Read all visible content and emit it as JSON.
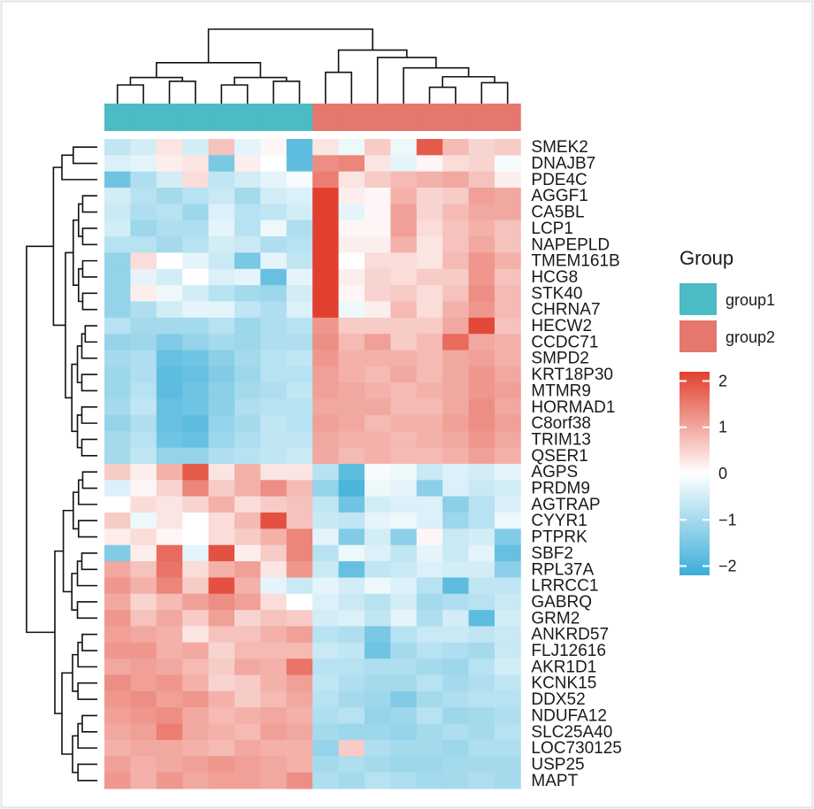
{
  "chart_data": {
    "type": "heatmap",
    "title": "",
    "rows": [
      "SMEK2",
      "DNAJB7",
      "PDE4C",
      "AGGF1",
      "CA5BL",
      "LCP1",
      "NAPEPLD",
      "TMEM161B",
      "HCG8",
      "STK40",
      "CHRNA7",
      "HECW2",
      "CCDC71",
      "SMPD2",
      "KRT18P30",
      "MTMR9",
      "HORMAD1",
      "C8orf38",
      "TRIM13",
      "QSER1",
      "AGPS",
      "PRDM9",
      "AGTRAP",
      "CYYR1",
      "PTPRK",
      "SBF2",
      "RPL37A",
      "LRRCC1",
      "GABRQ",
      "GRM2",
      "ANKRD57",
      "FLJ12616",
      "AKR1D1",
      "KCNK15",
      "DDX52",
      "NDUFA12",
      "SLC25A40",
      "LOC730125",
      "USP25",
      "MAPT"
    ],
    "column_groups": [
      "group1",
      "group1",
      "group1",
      "group1",
      "group1",
      "group1",
      "group1",
      "group1",
      "group2",
      "group2",
      "group2",
      "group2",
      "group2",
      "group2",
      "group2",
      "group2"
    ],
    "legend_group": {
      "title": "Group",
      "items": [
        {
          "label": "group1",
          "color": "#4bbbc4"
        },
        {
          "label": "group2",
          "color": "#e5776f"
        }
      ]
    },
    "color_scale": {
      "low_color": "#3aaed8",
      "mid_color": "#ffffff",
      "high_color": "#e1402e",
      "ticks": [
        2,
        1,
        0,
        -1,
        -2
      ],
      "tick_labels": [
        "2",
        "1",
        "0",
        "−1",
        "−2"
      ],
      "range": [
        -2.2,
        2.2
      ]
    },
    "values": [
      [
        -0.7,
        -0.5,
        0.3,
        -0.5,
        0.7,
        -0.3,
        0.1,
        -1.8,
        0.3,
        -0.2,
        0.6,
        -0.2,
        1.9,
        0.8,
        0.5,
        0.6
      ],
      [
        -0.4,
        -0.3,
        0.2,
        0.3,
        -1.5,
        0.2,
        0.0,
        -1.8,
        1.3,
        1.4,
        0.3,
        -0.3,
        0.1,
        0.4,
        0.5,
        -0.1
      ],
      [
        -1.6,
        -0.9,
        -0.5,
        0.4,
        -0.7,
        -0.5,
        -0.3,
        -0.1,
        1.5,
        0.3,
        0.6,
        0.8,
        0.9,
        1.0,
        0.7,
        0.2
      ],
      [
        -0.5,
        -0.8,
        -1.0,
        -0.8,
        -0.6,
        -1.0,
        -0.5,
        -0.4,
        2.2,
        0.2,
        0.1,
        0.9,
        0.5,
        0.6,
        1.1,
        1.0
      ],
      [
        -0.6,
        -0.9,
        -0.8,
        -1.1,
        -0.4,
        -0.8,
        -0.7,
        -0.5,
        2.2,
        -0.3,
        0.1,
        1.1,
        0.5,
        0.8,
        1.0,
        1.0
      ],
      [
        -0.5,
        -1.1,
        -0.9,
        -0.9,
        -0.3,
        -0.8,
        -0.2,
        -0.9,
        2.2,
        0.1,
        0.1,
        1.1,
        0.4,
        0.7,
        0.9,
        0.7
      ],
      [
        -0.8,
        -0.8,
        -1.0,
        -0.8,
        -0.5,
        -0.6,
        -0.9,
        -0.8,
        2.2,
        0.2,
        0.2,
        0.9,
        0.3,
        0.7,
        1.0,
        0.7
      ],
      [
        -1.2,
        0.4,
        0.0,
        -0.3,
        -0.6,
        -1.5,
        -0.3,
        -0.7,
        2.2,
        0.0,
        0.4,
        0.4,
        0.3,
        0.8,
        1.2,
        0.9
      ],
      [
        -1.2,
        -0.3,
        -0.5,
        0.0,
        -0.4,
        -0.3,
        -1.7,
        -0.3,
        2.2,
        0.2,
        0.5,
        0.4,
        0.6,
        0.6,
        1.2,
        0.7
      ],
      [
        -1.2,
        0.2,
        -0.2,
        -0.5,
        -0.8,
        -1.0,
        -1.1,
        -0.5,
        2.2,
        0.1,
        0.5,
        0.6,
        0.4,
        0.7,
        1.3,
        0.8
      ],
      [
        -1.2,
        -0.9,
        -0.5,
        -0.3,
        -0.3,
        -0.7,
        -0.9,
        -0.4,
        2.2,
        -0.2,
        0.2,
        0.8,
        0.4,
        0.9,
        1.2,
        0.8
      ],
      [
        -0.8,
        -1.0,
        -1.0,
        -1.0,
        -0.8,
        -1.1,
        -0.9,
        -0.8,
        1.2,
        0.6,
        0.6,
        0.6,
        0.6,
        1.0,
        2.1,
        0.7
      ],
      [
        -1.2,
        -1.1,
        -1.4,
        -1.2,
        -1.0,
        -1.1,
        -0.9,
        -0.9,
        1.3,
        0.8,
        1.1,
        0.6,
        0.8,
        1.7,
        1.0,
        0.9
      ],
      [
        -1.0,
        -0.9,
        -1.7,
        -1.6,
        -1.3,
        -1.0,
        -0.8,
        -0.7,
        1.2,
        0.9,
        0.9,
        0.9,
        0.8,
        1.0,
        1.1,
        0.9
      ],
      [
        -1.1,
        -0.9,
        -1.8,
        -1.7,
        -1.4,
        -1.1,
        -0.8,
        -0.8,
        1.1,
        0.9,
        0.8,
        1.0,
        0.8,
        1.0,
        1.2,
        1.0
      ],
      [
        -1.1,
        -0.8,
        -1.8,
        -1.6,
        -1.3,
        -1.0,
        -0.9,
        -0.7,
        1.1,
        1.0,
        0.9,
        0.8,
        0.9,
        1.0,
        1.2,
        1.1
      ],
      [
        -1.0,
        -0.7,
        -1.7,
        -1.6,
        -1.3,
        -0.9,
        -0.8,
        -0.8,
        1.0,
        1.0,
        1.0,
        0.8,
        0.8,
        1.0,
        1.3,
        1.0
      ],
      [
        -1.2,
        -0.9,
        -1.7,
        -1.8,
        -1.2,
        -1.0,
        -0.7,
        -0.8,
        1.1,
        1.0,
        0.8,
        0.9,
        0.9,
        1.1,
        1.3,
        1.1
      ],
      [
        -1.0,
        -0.8,
        -1.6,
        -1.7,
        -1.1,
        -0.9,
        -0.7,
        -0.7,
        1.0,
        0.9,
        0.9,
        0.8,
        0.9,
        1.0,
        1.2,
        1.0
      ],
      [
        -1.0,
        -0.7,
        -1.2,
        -1.2,
        -0.9,
        -0.8,
        -0.7,
        -0.6,
        1.0,
        0.8,
        0.9,
        0.8,
        0.8,
        0.9,
        1.1,
        0.9
      ],
      [
        0.6,
        0.2,
        0.9,
        1.9,
        0.3,
        0.9,
        0.3,
        0.3,
        -0.8,
        -1.8,
        -0.1,
        -0.2,
        -0.6,
        -0.4,
        -0.5,
        -0.3
      ],
      [
        -0.4,
        0.1,
        0.5,
        1.4,
        0.6,
        0.9,
        1.3,
        0.8,
        -1.2,
        -2.0,
        -0.2,
        -0.3,
        -1.3,
        -0.4,
        -0.6,
        -0.5
      ],
      [
        0.0,
        0.4,
        0.3,
        0.5,
        0.9,
        0.4,
        0.6,
        0.7,
        -0.7,
        -1.6,
        -0.5,
        -0.4,
        -0.4,
        -1.3,
        -0.8,
        -0.4
      ],
      [
        0.6,
        -0.2,
        0.3,
        0.0,
        0.4,
        0.8,
        2.0,
        0.7,
        -0.6,
        -0.7,
        -0.3,
        -0.2,
        -0.4,
        -1.1,
        -0.8,
        -0.2
      ],
      [
        0.2,
        0.4,
        0.1,
        0.0,
        0.4,
        0.6,
        0.9,
        1.4,
        -0.3,
        -1.4,
        -0.5,
        -1.3,
        0.1,
        -0.6,
        -0.5,
        -1.4
      ],
      [
        -1.4,
        0.2,
        1.7,
        -0.3,
        2.0,
        0.2,
        0.6,
        1.4,
        -0.8,
        -0.2,
        -0.4,
        -0.7,
        -0.3,
        -0.6,
        -0.3,
        -1.7
      ],
      [
        1.0,
        0.7,
        1.6,
        0.4,
        0.9,
        1.1,
        0.3,
        1.2,
        -0.6,
        -1.7,
        -0.7,
        -0.6,
        -0.4,
        -0.5,
        -0.5,
        -1.3
      ],
      [
        1.2,
        0.9,
        1.4,
        0.6,
        2.0,
        0.9,
        -0.3,
        -0.6,
        -0.3,
        -0.5,
        -0.2,
        -0.4,
        -0.8,
        -1.8,
        -0.7,
        -0.7
      ],
      [
        1.0,
        0.5,
        0.8,
        1.1,
        1.3,
        1.1,
        0.4,
        0.0,
        -0.4,
        -0.6,
        -0.8,
        -0.5,
        -1.0,
        -0.9,
        -0.8,
        -0.6
      ],
      [
        1.2,
        0.7,
        1.0,
        0.6,
        1.1,
        0.5,
        0.7,
        0.6,
        -0.5,
        -0.4,
        -0.7,
        -0.3,
        -0.9,
        -0.5,
        -1.8,
        -0.5
      ],
      [
        1.1,
        1.0,
        0.9,
        0.3,
        0.7,
        0.7,
        0.9,
        1.1,
        -0.8,
        -0.9,
        -1.5,
        -0.8,
        -0.6,
        -0.6,
        -0.7,
        -0.6
      ],
      [
        1.2,
        1.2,
        0.9,
        1.0,
        0.5,
        0.8,
        0.8,
        0.8,
        -0.6,
        -0.7,
        -1.6,
        -1.0,
        -0.8,
        -0.9,
        -1.0,
        -0.6
      ],
      [
        1.0,
        1.1,
        1.0,
        0.8,
        0.6,
        1.0,
        0.9,
        1.6,
        -0.8,
        -0.8,
        -0.9,
        -0.9,
        -1.0,
        -1.1,
        -0.8,
        -0.5
      ],
      [
        1.3,
        1.1,
        1.2,
        0.9,
        0.5,
        0.6,
        0.9,
        1.1,
        -0.7,
        -0.9,
        -1.0,
        -1.0,
        -0.8,
        -1.0,
        -0.9,
        -0.7
      ],
      [
        1.2,
        1.3,
        1.1,
        1.2,
        0.9,
        0.6,
        0.8,
        1.0,
        -0.8,
        -1.0,
        -1.1,
        -1.4,
        -1.0,
        -0.9,
        -0.8,
        -0.8
      ],
      [
        1.1,
        1.2,
        1.3,
        1.0,
        0.8,
        0.9,
        1.0,
        0.9,
        -0.9,
        -0.8,
        -1.2,
        -1.1,
        -0.8,
        -1.1,
        -1.0,
        -0.9
      ],
      [
        1.0,
        1.1,
        1.5,
        1.0,
        0.9,
        0.8,
        1.1,
        1.0,
        -1.0,
        -1.1,
        -1.1,
        -1.2,
        -1.0,
        -0.9,
        -1.0,
        -0.8
      ],
      [
        0.9,
        1.0,
        1.0,
        0.9,
        0.8,
        1.0,
        0.9,
        0.9,
        -1.2,
        0.6,
        -0.9,
        -1.0,
        -1.0,
        -1.1,
        -0.9,
        -0.9
      ],
      [
        1.1,
        0.9,
        1.0,
        1.1,
        1.2,
        1.1,
        1.0,
        0.9,
        -1.0,
        -0.9,
        -1.0,
        -1.1,
        -1.1,
        -1.0,
        -1.0,
        -1.0
      ],
      [
        1.2,
        0.9,
        1.2,
        1.0,
        1.1,
        1.1,
        1.0,
        1.3,
        -0.9,
        -1.0,
        -0.8,
        -0.9,
        -1.0,
        -1.0,
        -0.9,
        -1.0
      ]
    ]
  }
}
